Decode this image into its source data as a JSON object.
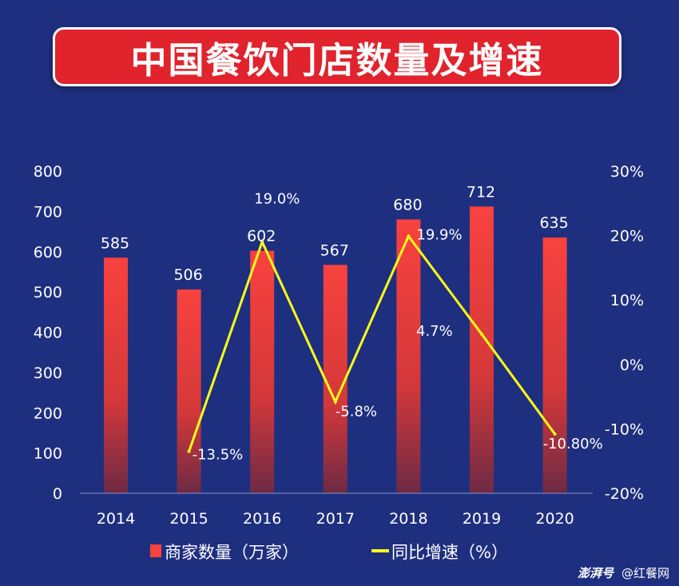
{
  "title": "中国餐饮门店数量及增速",
  "chart_data": {
    "type": "bar",
    "categories": [
      "2014",
      "2015",
      "2016",
      "2017",
      "2018",
      "2019",
      "2020"
    ],
    "series": [
      {
        "name": "商家数量（万家）",
        "type": "bar",
        "axis": "left",
        "values": [
          585,
          506,
          602,
          567,
          680,
          712,
          635
        ],
        "labels": [
          "585",
          "506",
          "602",
          "567",
          "680",
          "712",
          "635"
        ]
      },
      {
        "name": "同比增速（%）",
        "type": "line",
        "axis": "right",
        "values": [
          null,
          -13.5,
          19.0,
          -5.8,
          19.9,
          4.7,
          -10.8
        ],
        "labels": [
          "",
          "-13.5%",
          "19.0%",
          "-5.8%",
          "19.9%",
          "4.7%",
          "-10.80%"
        ]
      }
    ],
    "y_left": {
      "ylim": [
        0,
        800
      ],
      "ticks": [
        "0",
        "100",
        "200",
        "300",
        "400",
        "500",
        "600",
        "700",
        "800"
      ]
    },
    "y_right": {
      "ylim": [
        -20,
        30
      ],
      "ticks": [
        "-20%",
        "-10%",
        "0%",
        "10%",
        "20%",
        "30%"
      ]
    },
    "grid": false,
    "legend_position": "bottom-center",
    "colors": {
      "bar_top": "#f8423e",
      "bar_bottom": "#6e2a45",
      "line": "#ffff1a",
      "text": "#ffffff",
      "title_bg": "#e0232d",
      "background": "#1f2f7f"
    }
  },
  "watermark": {
    "logo": "澎湃号",
    "text": "@红餐网"
  }
}
